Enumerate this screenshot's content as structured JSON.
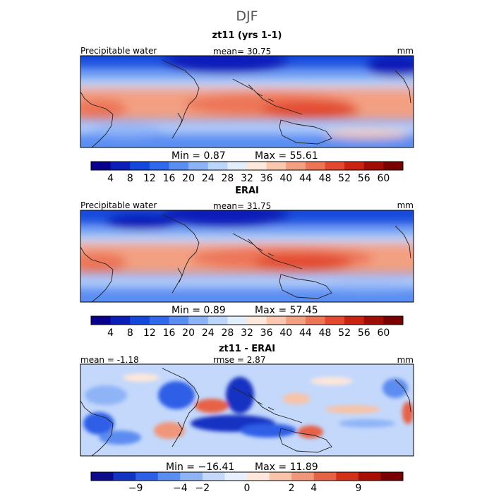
{
  "figure": {
    "title": "DJF",
    "units": "mm"
  },
  "colors": {
    "abs_scale": [
      "#08008c",
      "#0b1fb8",
      "#1448dc",
      "#2f69ec",
      "#5a8ef2",
      "#8db3f7",
      "#bcd5fb",
      "#e3eefd",
      "#fde9dc",
      "#f9c8af",
      "#f3a082",
      "#ec7556",
      "#e2492f",
      "#c92312",
      "#a00d04",
      "#7a0000"
    ],
    "diff_scale": [
      "#0b0b8c",
      "#1333c2",
      "#2f5fe6",
      "#5b8cf1",
      "#8fb4f6",
      "#c3d8fb",
      "#e6effd",
      "#fde6da",
      "#f8c3a8",
      "#f0967a",
      "#e66246",
      "#d43018",
      "#a80f02",
      "#7a0000"
    ],
    "land": "#222222"
  },
  "chart_data": [
    {
      "type": "heatmap",
      "id": "model",
      "title": "zt11 (yrs 1-1)",
      "left_label": "Precipitable water",
      "mean_text": "mean=  30.75",
      "units": "mm",
      "mean": 30.75,
      "min": 0.87,
      "max": 55.61,
      "min_text": "Min =    0.87",
      "max_text": "Max =   55.61",
      "colorbar_ticks": [
        "4",
        "8",
        "12",
        "16",
        "20",
        "24",
        "28",
        "32",
        "36",
        "40",
        "44",
        "48",
        "52",
        "56",
        "60"
      ],
      "colorbar_levels": [
        4,
        8,
        12,
        16,
        20,
        24,
        28,
        32,
        36,
        40,
        44,
        48,
        52,
        56,
        60
      ]
    },
    {
      "type": "heatmap",
      "id": "obs",
      "title": "ERAI",
      "left_label": "Precipitable water",
      "mean_text": "mean=  31.75",
      "units": "mm",
      "mean": 31.75,
      "min": 0.89,
      "max": 57.45,
      "min_text": "Min =    0.89",
      "max_text": "Max =   57.45",
      "colorbar_ticks": [
        "4",
        "8",
        "12",
        "16",
        "20",
        "24",
        "28",
        "32",
        "36",
        "40",
        "44",
        "48",
        "52",
        "56",
        "60"
      ],
      "colorbar_levels": [
        4,
        8,
        12,
        16,
        20,
        24,
        28,
        32,
        36,
        40,
        44,
        48,
        52,
        56,
        60
      ]
    },
    {
      "type": "heatmap",
      "id": "diff",
      "title": "zt11 - ERAI",
      "left_label": "mean =  -1.18",
      "mean_text": "rmse =   2.87",
      "units": "mm",
      "mean": -1.18,
      "rmse": 2.87,
      "min": -16.41,
      "max": 11.89,
      "min_text": "Min = −16.41",
      "max_text": "Max =   11.89",
      "colorbar_ticks": [
        "−9",
        "−4",
        "−2",
        "0",
        "2",
        "4",
        "9"
      ],
      "colorbar_levels": [
        -9,
        -4,
        -2,
        0,
        2,
        4,
        9
      ]
    }
  ]
}
